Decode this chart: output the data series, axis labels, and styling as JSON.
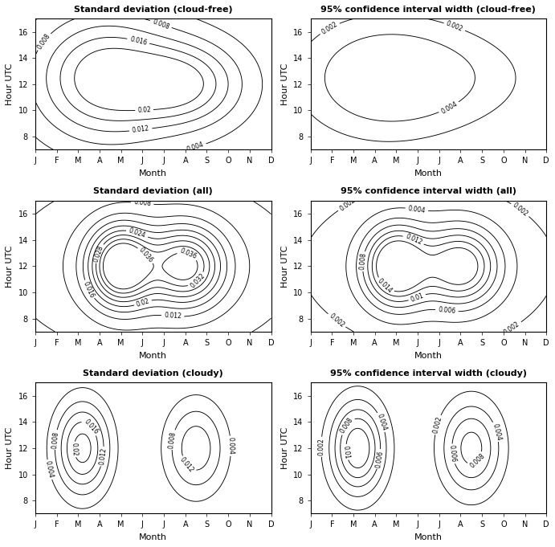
{
  "titles": [
    "Standard deviation (cloud-free)",
    "95% confidence interval width (cloud-free)",
    "Standard deviation (all)",
    "95% confidence interval width (all)",
    "Standard deviation (cloudy)",
    "95% confidence interval width (cloudy)"
  ],
  "xlabel": "Month",
  "ylabel": "Hour UTC",
  "month_labels": [
    "J",
    "F",
    "M",
    "A",
    "M",
    "J",
    "J",
    "A",
    "S",
    "O",
    "N",
    "D"
  ],
  "hour_ticks": [
    8,
    10,
    12,
    14,
    16
  ],
  "sd_cf_levels": [
    0.004,
    0.008,
    0.012,
    0.016,
    0.02
  ],
  "ci_cf_levels": [
    0.002,
    0.004
  ],
  "sd_all_levels": [
    0.004,
    0.008,
    0.012,
    0.016,
    0.02,
    0.024,
    0.028,
    0.032,
    0.036
  ],
  "ci_all_levels": [
    0.002,
    0.004,
    0.006,
    0.008,
    0.01,
    0.012,
    0.014
  ],
  "sd_cloudy_levels": [
    0.004,
    0.008,
    0.012,
    0.016,
    0.02
  ],
  "ci_cloudy_levels": [
    0.002,
    0.004,
    0.006,
    0.008,
    0.01
  ]
}
